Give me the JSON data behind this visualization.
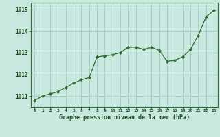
{
  "x": [
    0,
    1,
    2,
    3,
    4,
    5,
    6,
    7,
    8,
    9,
    10,
    11,
    12,
    13,
    14,
    15,
    16,
    17,
    18,
    19,
    20,
    21,
    22,
    23
  ],
  "y": [
    1010.8,
    1011.0,
    1011.1,
    1011.2,
    1011.4,
    1011.6,
    1011.75,
    1011.85,
    1012.8,
    1012.85,
    1012.9,
    1013.0,
    1013.25,
    1013.25,
    1013.15,
    1013.25,
    1013.1,
    1012.6,
    1012.65,
    1012.8,
    1013.15,
    1013.8,
    1014.65,
    1014.95
  ],
  "line_color": "#2d6a2d",
  "marker_color": "#2d6a2d",
  "bg_color": "#c8e8e0",
  "grid_color": "#aaccc8",
  "xlabel": "Graphe pression niveau de la mer (hPa)",
  "ylim_min": 1010.5,
  "ylim_max": 1015.3,
  "yticks": [
    1011,
    1012,
    1013,
    1014,
    1015
  ],
  "xticks": [
    0,
    1,
    2,
    3,
    4,
    5,
    6,
    7,
    8,
    9,
    10,
    11,
    12,
    13,
    14,
    15,
    16,
    17,
    18,
    19,
    20,
    21,
    22,
    23
  ],
  "spine_color": "#2d6a2d",
  "tick_color": "#1a4a1a",
  "xlabel_color": "#1a4a1a"
}
